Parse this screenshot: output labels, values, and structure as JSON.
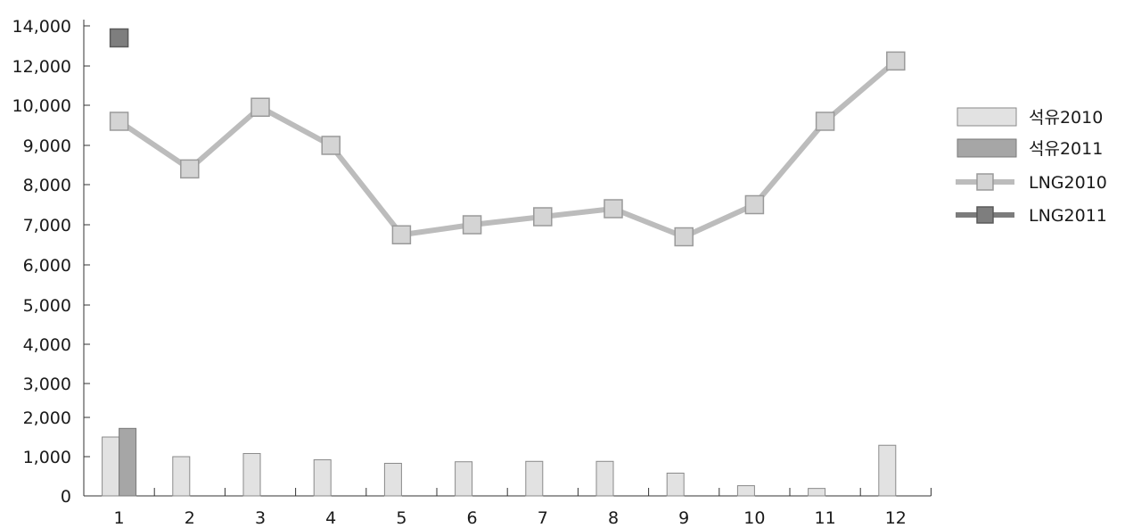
{
  "chart_data": {
    "type": "bar",
    "categories": [
      "1",
      "2",
      "3",
      "4",
      "5",
      "6",
      "7",
      "8",
      "9",
      "10",
      "11",
      "12"
    ],
    "y_ticks": [
      {
        "label": "0",
        "value": 0
      },
      {
        "label": "1,000",
        "value": 1000
      },
      {
        "label": "2,000",
        "value": 2000
      },
      {
        "label": "3,000",
        "value": 3000
      },
      {
        "label": "4,000",
        "value": 4000
      },
      {
        "label": "5,000",
        "value": 5000
      },
      {
        "label": "6,000",
        "value": 6000
      },
      {
        "label": "7,000",
        "value": 7000
      },
      {
        "label": "8,000",
        "value": 8000
      },
      {
        "label": "9,000",
        "value": 9000
      },
      {
        "label": "10,000",
        "value": 10000
      },
      {
        "label": "12,000",
        "value": 12000
      },
      {
        "label": "14,000",
        "value": 14000
      }
    ],
    "series": [
      {
        "name": "석유2010",
        "kind": "bar",
        "color": "#e2e2e2",
        "stroke": "#8a8a8a",
        "values": [
          1500,
          1000,
          1080,
          920,
          830,
          870,
          880,
          880,
          580,
          260,
          190,
          1290
        ]
      },
      {
        "name": "석유2011",
        "kind": "bar",
        "color": "#a6a6a6",
        "stroke": "#7a7a7a",
        "values": [
          1720,
          0,
          0,
          0,
          0,
          0,
          0,
          0,
          0,
          0,
          0,
          0
        ]
      },
      {
        "name": "LNG2010",
        "kind": "line",
        "color": "#bcbcbc",
        "marker_fill": "#d4d4d4",
        "marker_stroke": "#9a9a9a",
        "values": [
          9600,
          8400,
          9950,
          9000,
          6750,
          7000,
          7200,
          7400,
          6700,
          7500,
          9600,
          12250
        ]
      },
      {
        "name": "LNG2011",
        "kind": "line",
        "color": "#7c7c7c",
        "marker_fill": "#7e7e7e",
        "marker_stroke": "#5a5a5a",
        "values": [
          13400,
          null,
          null,
          null,
          null,
          null,
          null,
          null,
          null,
          null,
          null,
          null
        ]
      }
    ],
    "legend_position": "right",
    "grid": false
  }
}
